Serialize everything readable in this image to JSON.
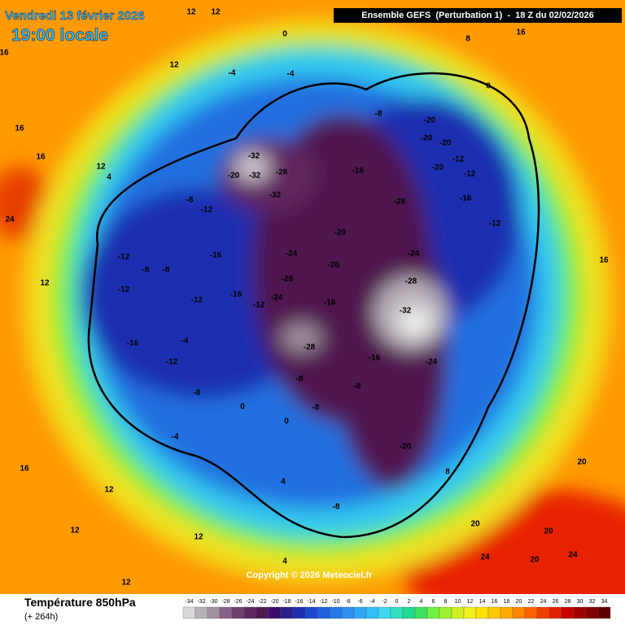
{
  "header": {
    "date": "Vendredi 13 février 2026",
    "time": "19:00 locale",
    "model": "Ensemble GEFS  (Perturbation 1)  -  18 Z du 02/02/2026"
  },
  "copyright": "Copyright © 2026 Meteociel.fr",
  "legend": {
    "title": "Température 850hPa",
    "lead": "(+ 264h)",
    "scale": [
      -34,
      -32,
      -30,
      -28,
      -26,
      -24,
      -22,
      -20,
      -18,
      -16,
      -14,
      -12,
      -10,
      -8,
      -6,
      -4,
      -2,
      0,
      2,
      4,
      6,
      8,
      10,
      12,
      14,
      16,
      18,
      20,
      22,
      24,
      26,
      28,
      30,
      32,
      34
    ],
    "colors": [
      "#d8d8d8",
      "#b8b0b8",
      "#a090a0",
      "#886088",
      "#704070",
      "#602860",
      "#501850",
      "#3c0c6c",
      "#281e8c",
      "#1e2fb0",
      "#1e46d2",
      "#2060e0",
      "#2878e8",
      "#3090f0",
      "#30a8f8",
      "#30c0f8",
      "#40d8f0",
      "#30e0c0",
      "#20d890",
      "#40e060",
      "#70f040",
      "#a0f030",
      "#d0f020",
      "#f0f020",
      "#ffe000",
      "#ffc800",
      "#ffa800",
      "#ff8800",
      "#ff6400",
      "#f04000",
      "#e02000",
      "#c80000",
      "#a00000",
      "#800000",
      "#600000"
    ]
  },
  "map_labels": [
    "12",
    "12",
    "12",
    "12",
    "12",
    "12",
    "12",
    "12",
    "12",
    "16",
    "16",
    "16",
    "16",
    "16",
    "16",
    "-20",
    "-20",
    "-20",
    "-20",
    "-20",
    "-20",
    "-20",
    "-20",
    "-24",
    "-24",
    "-24",
    "-24",
    "-28",
    "-28",
    "-28",
    "-28",
    "-28",
    "-32",
    "-32",
    "-32",
    "-32",
    "-16",
    "-16",
    "-16",
    "-16",
    "-16",
    "-16",
    "-16",
    "-12",
    "-12",
    "-12",
    "-12",
    "-12",
    "-12",
    "-12",
    "-12",
    "-12",
    "-8",
    "-8",
    "-8",
    "-8",
    "-8",
    "-8",
    "-8",
    "-8",
    "-8",
    "-4",
    "-4",
    "-4",
    "-4",
    "0",
    "0",
    "0",
    "0",
    "4",
    "4",
    "4",
    "8",
    "8",
    "20",
    "20",
    "20",
    "20",
    "24",
    "24",
    "24"
  ]
}
